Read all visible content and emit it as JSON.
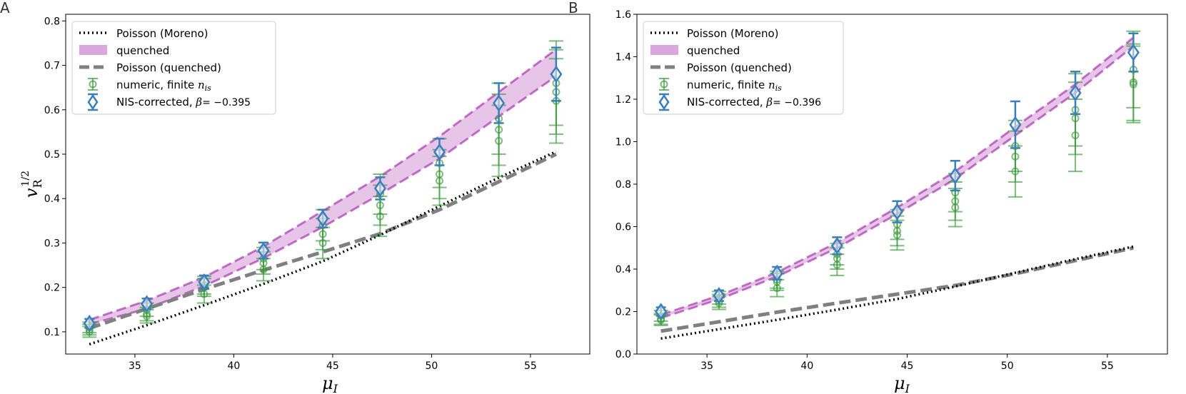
{
  "colors": {
    "poisson_moreno": "#000000",
    "quenched_band": "#d9a6dd",
    "quenched_edge": "#b24cb8",
    "poisson_quenched": "#808080",
    "numeric": "#3a9a3a",
    "nis": "#3a7fb8"
  },
  "legend_labels": {
    "poisson_moreno": "Poisson (Moreno)",
    "quenched": "quenched",
    "poisson_quenched": "Poisson (quenched)",
    "numeric": "numeric, finite ",
    "numeric_sub": "n",
    "numeric_subsub": "is",
    "nis_prefix": "NIS-corrected, ",
    "nis_beta_sym": "β",
    "panel_a_beta": "= −0.395",
    "panel_b_beta": "= −0.396"
  },
  "chart_data": [
    {
      "panel": "A",
      "type": "line",
      "xlabel": "μ",
      "xlabel_sub": "I",
      "ylabel": "v",
      "ylabel_sub": "R",
      "ylabel_sup": "1/2",
      "xlim": [
        31.5,
        58
      ],
      "ylim": [
        0.05,
        0.815
      ],
      "xticks": [
        35,
        40,
        45,
        50,
        55
      ],
      "yticks": [
        0.1,
        0.2,
        0.3,
        0.4,
        0.5,
        0.6,
        0.7,
        0.8
      ],
      "ytick_labels": [
        "0.1",
        "0.2",
        "0.3",
        "0.4",
        "0.5",
        "0.6",
        "0.7",
        "0.8"
      ],
      "legend_position": "top-left",
      "x_points": [
        32.7,
        35.6,
        38.5,
        41.5,
        44.5,
        47.4,
        50.4,
        53.4,
        56.3
      ],
      "poisson_moreno": [
        0.072,
        0.115,
        0.16,
        0.208,
        0.259,
        0.318,
        0.383,
        0.447,
        0.506
      ],
      "poisson_quenched": [
        0.108,
        0.152,
        0.196,
        0.239,
        0.28,
        0.321,
        0.375,
        0.438,
        0.5
      ],
      "quenched_upper": [
        0.127,
        0.17,
        0.223,
        0.292,
        0.372,
        0.45,
        0.54,
        0.64,
        0.736
      ],
      "quenched_lower": [
        0.117,
        0.152,
        0.203,
        0.266,
        0.336,
        0.41,
        0.49,
        0.585,
        0.676
      ],
      "nis_values": [
        0.119,
        0.163,
        0.212,
        0.283,
        0.355,
        0.423,
        0.505,
        0.615,
        0.68
      ],
      "nis_err": [
        0.01,
        0.012,
        0.015,
        0.018,
        0.02,
        0.025,
        0.03,
        0.045,
        0.06
      ],
      "numeric_values": [
        [
          0.11,
          0.105,
          0.1
        ],
        [
          0.15,
          0.14,
          0.135
        ],
        [
          0.205,
          0.2,
          0.185
        ],
        [
          0.265,
          0.255,
          0.24
        ],
        [
          0.34,
          0.32,
          0.3
        ],
        [
          0.41,
          0.385,
          0.36
        ],
        [
          0.48,
          0.455,
          0.44
        ],
        [
          0.58,
          0.555,
          0.53
        ],
        [
          0.66,
          0.64,
          0.62
        ]
      ],
      "numeric_err": [
        0.012,
        0.015,
        0.02,
        0.025,
        0.035,
        0.045,
        0.055,
        0.08,
        0.095
      ]
    },
    {
      "panel": "B",
      "type": "line",
      "xlabel": "μ",
      "xlabel_sub": "I",
      "xlim": [
        31.5,
        58
      ],
      "ylim": [
        0.0,
        1.6
      ],
      "xticks": [
        35,
        40,
        45,
        50,
        55
      ],
      "yticks": [
        0.0,
        0.2,
        0.4,
        0.6,
        0.8,
        1.0,
        1.2,
        1.4,
        1.6
      ],
      "ytick_labels": [
        "0.0",
        "0.2",
        "0.4",
        "0.6",
        "0.8",
        "1.0",
        "1.2",
        "1.4",
        "1.6"
      ],
      "legend_position": "top-left",
      "x_points": [
        32.7,
        35.6,
        38.5,
        41.5,
        44.5,
        47.4,
        50.4,
        53.4,
        56.3
      ],
      "poisson_moreno": [
        0.073,
        0.117,
        0.161,
        0.209,
        0.259,
        0.318,
        0.383,
        0.447,
        0.506
      ],
      "poisson_quenched": [
        0.108,
        0.152,
        0.197,
        0.24,
        0.282,
        0.323,
        0.378,
        0.44,
        0.5
      ],
      "quenched_upper": [
        0.185,
        0.275,
        0.385,
        0.525,
        0.69,
        0.86,
        1.07,
        1.27,
        1.49
      ],
      "quenched_lower": [
        0.17,
        0.258,
        0.365,
        0.5,
        0.66,
        0.825,
        1.03,
        1.23,
        1.45
      ],
      "nis_values": [
        0.2,
        0.275,
        0.38,
        0.51,
        0.67,
        0.84,
        1.08,
        1.23,
        1.42
      ],
      "nis_err": [
        0.02,
        0.025,
        0.03,
        0.04,
        0.05,
        0.07,
        0.11,
        0.1,
        0.09
      ],
      "numeric_values": [
        [
          0.18,
          0.165,
          0.16
        ],
        [
          0.265,
          0.25,
          0.24
        ],
        [
          0.35,
          0.34,
          0.31
        ],
        [
          0.47,
          0.45,
          0.42
        ],
        [
          0.61,
          0.58,
          0.56
        ],
        [
          0.76,
          0.72,
          0.69
        ],
        [
          0.98,
          0.93,
          0.86
        ],
        [
          1.15,
          1.11,
          1.03
        ],
        [
          1.34,
          1.28,
          1.27
        ]
      ],
      "numeric_err": [
        0.025,
        0.03,
        0.04,
        0.05,
        0.07,
        0.09,
        0.12,
        0.17,
        0.18
      ]
    }
  ]
}
